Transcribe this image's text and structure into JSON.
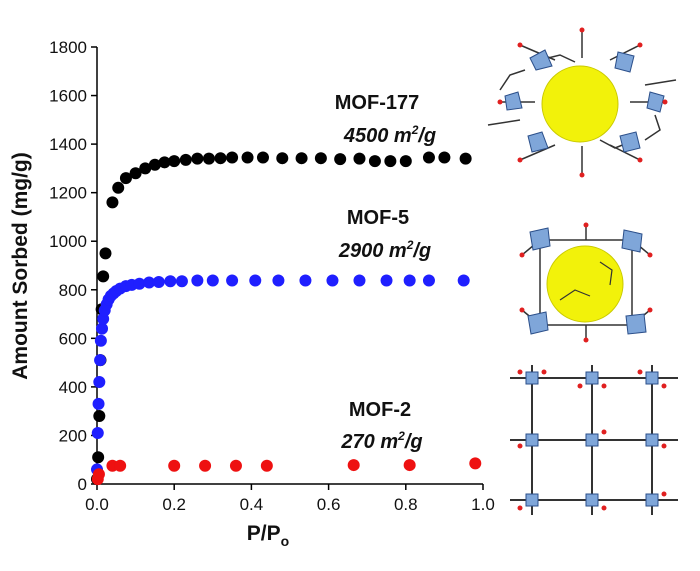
{
  "chart_data": {
    "type": "scatter",
    "xlabel": "P/P",
    "xlabel_subscript": "o",
    "ylabel": "Amount Sorbed (mg/g)",
    "xlim": [
      0,
      1.0
    ],
    "ylim": [
      0,
      1800
    ],
    "xticks": [
      "0.0",
      "0.2",
      "0.4",
      "0.6",
      "0.8",
      "1.0"
    ],
    "yticks": [
      "0",
      "200",
      "400",
      "600",
      "800",
      "1000",
      "1200",
      "1400",
      "1600",
      "1800"
    ],
    "grid": false,
    "legend": "none",
    "series": [
      {
        "name": "MOF-177",
        "color": "#000000",
        "x": [
          0.0,
          0.003,
          0.006,
          0.009,
          0.012,
          0.016,
          0.022,
          0.04,
          0.055,
          0.075,
          0.1,
          0.125,
          0.15,
          0.175,
          0.2,
          0.23,
          0.26,
          0.29,
          0.32,
          0.35,
          0.39,
          0.43,
          0.48,
          0.53,
          0.58,
          0.63,
          0.68,
          0.72,
          0.76,
          0.8,
          0.86,
          0.9,
          0.955
        ],
        "y": [
          20,
          110,
          280,
          510,
          720,
          855,
          950,
          1160,
          1220,
          1260,
          1280,
          1300,
          1315,
          1325,
          1330,
          1335,
          1340,
          1340,
          1342,
          1345,
          1345,
          1345,
          1342,
          1342,
          1342,
          1338,
          1340,
          1330,
          1330,
          1330,
          1345,
          1345,
          1340
        ]
      },
      {
        "name": "MOF-5",
        "color": "#1f1fff",
        "x": [
          0.0,
          0.002,
          0.004,
          0.006,
          0.008,
          0.01,
          0.013,
          0.016,
          0.02,
          0.025,
          0.03,
          0.036,
          0.043,
          0.05,
          0.06,
          0.075,
          0.09,
          0.11,
          0.135,
          0.16,
          0.19,
          0.22,
          0.26,
          0.3,
          0.35,
          0.41,
          0.47,
          0.54,
          0.61,
          0.68,
          0.75,
          0.81,
          0.86,
          0.95
        ],
        "y": [
          60,
          210,
          330,
          420,
          510,
          590,
          640,
          680,
          715,
          740,
          760,
          775,
          785,
          795,
          805,
          815,
          820,
          825,
          830,
          832,
          835,
          835,
          838,
          838,
          838,
          838,
          838,
          838,
          838,
          838,
          838,
          838,
          838,
          838
        ]
      },
      {
        "name": "MOF-2",
        "color": "#ee1111",
        "x": [
          0.002,
          0.005,
          0.04,
          0.06,
          0.2,
          0.28,
          0.36,
          0.44,
          0.665,
          0.81,
          0.98
        ],
        "y": [
          20,
          40,
          75,
          75,
          75,
          75,
          75,
          75,
          78,
          78,
          85
        ]
      }
    ]
  },
  "annotations": {
    "mof177": {
      "name": "MOF-177",
      "area": "4500 m",
      "sup": "2",
      "unit": "/g"
    },
    "mof5": {
      "name": "MOF-5",
      "area": "2900 m",
      "sup": "2",
      "unit": "/g"
    },
    "mof2": {
      "name": "MOF-2",
      "area": "270 m",
      "sup": "2",
      "unit": "/g"
    }
  }
}
